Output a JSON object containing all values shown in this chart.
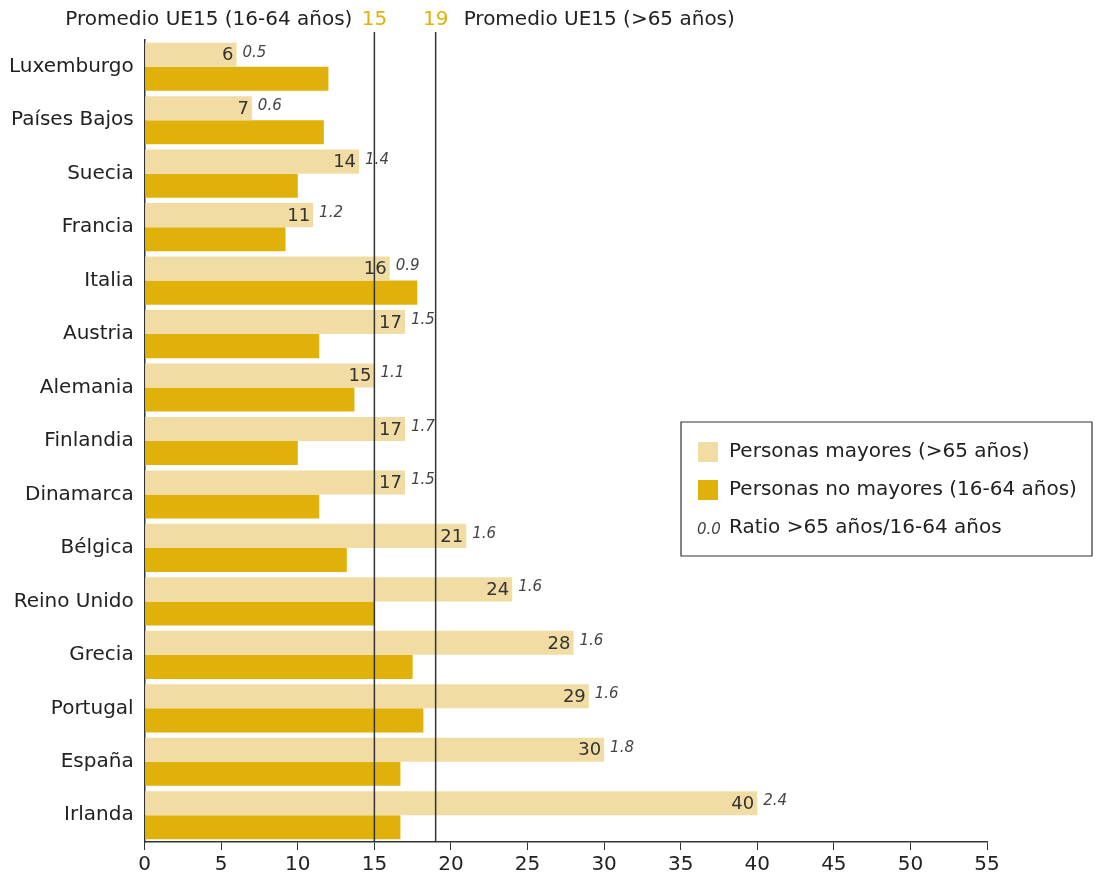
{
  "chart_data": {
    "type": "bar",
    "orientation": "horizontal",
    "categories": [
      "Luxemburgo",
      "Países Bajos",
      "Suecia",
      "Francia",
      "Italia",
      "Austria",
      "Alemania",
      "Finlandia",
      "Dinamarca",
      "Bélgica",
      "Reino Unido",
      "Grecia",
      "Portugal",
      "España",
      "Irlanda"
    ],
    "series": [
      {
        "name": "Personas mayores (>65 años)",
        "color": "#f1dda3",
        "values": [
          6,
          7,
          14,
          11,
          16,
          17,
          15,
          17,
          17,
          21,
          24,
          28,
          29,
          30,
          40
        ],
        "value_labels": [
          "6",
          "7",
          "14",
          "11",
          "16",
          "17",
          "15",
          "17",
          "17",
          "21",
          "24",
          "28",
          "29",
          "30",
          "40"
        ]
      },
      {
        "name": "Personas no mayores (16-64 años)",
        "color": "#e0b10a",
        "values": [
          12.0,
          11.7,
          10.0,
          9.2,
          17.8,
          11.4,
          13.7,
          10.0,
          11.4,
          13.2,
          15.0,
          17.5,
          18.2,
          16.7,
          16.7
        ]
      }
    ],
    "xlim": [
      0,
      55
    ],
    "xticks": [
      0,
      5,
      10,
      15,
      20,
      25,
      30,
      35,
      40,
      45,
      50,
      55
    ],
    "grid": false,
    "legend": "right",
    "ref_lines": [
      {
        "axis": "x",
        "value": 15,
        "label": "Promedio UE15 (16-64 años)",
        "color": "#333333"
      },
      {
        "axis": "x",
        "value": 19,
        "label": "Promedio UE15 (>65 años)",
        "color": "#333333"
      }
    ],
    "annotations": [
      "0.0 Ratio >65 años/16-64 años",
      "15",
      "19",
      {
        "text": "0.5",
        "x": 6,
        "y": "Luxemburgo"
      },
      {
        "text": "0.6",
        "x": 7,
        "y": "Países Bajos"
      },
      {
        "text": "1.4",
        "x": 14,
        "y": "Suecia"
      },
      {
        "text": "1.2",
        "x": 11,
        "y": "Francia"
      },
      {
        "text": "0.9",
        "x": 16,
        "y": "Italia"
      },
      {
        "text": "1.5",
        "x": 17,
        "y": "Austria"
      },
      {
        "text": "1.1",
        "x": 15,
        "y": "Alemania"
      },
      {
        "text": "1.7",
        "x": 17,
        "y": "Finlandia"
      },
      {
        "text": "1.5",
        "x": 17,
        "y": "Dinamarca"
      },
      {
        "text": "1.6",
        "x": 21,
        "y": "Bélgica"
      },
      {
        "text": "1.6",
        "x": 24,
        "y": "Reino Unido"
      },
      {
        "text": "1.6",
        "x": 28,
        "y": "Grecia"
      },
      {
        "text": "1.6",
        "x": 29,
        "y": "Portugal"
      },
      {
        "text": "1.8",
        "x": 30,
        "y": "España"
      },
      {
        "text": "2.4",
        "x": 40,
        "y": "Irlanda"
      }
    ]
  }
}
